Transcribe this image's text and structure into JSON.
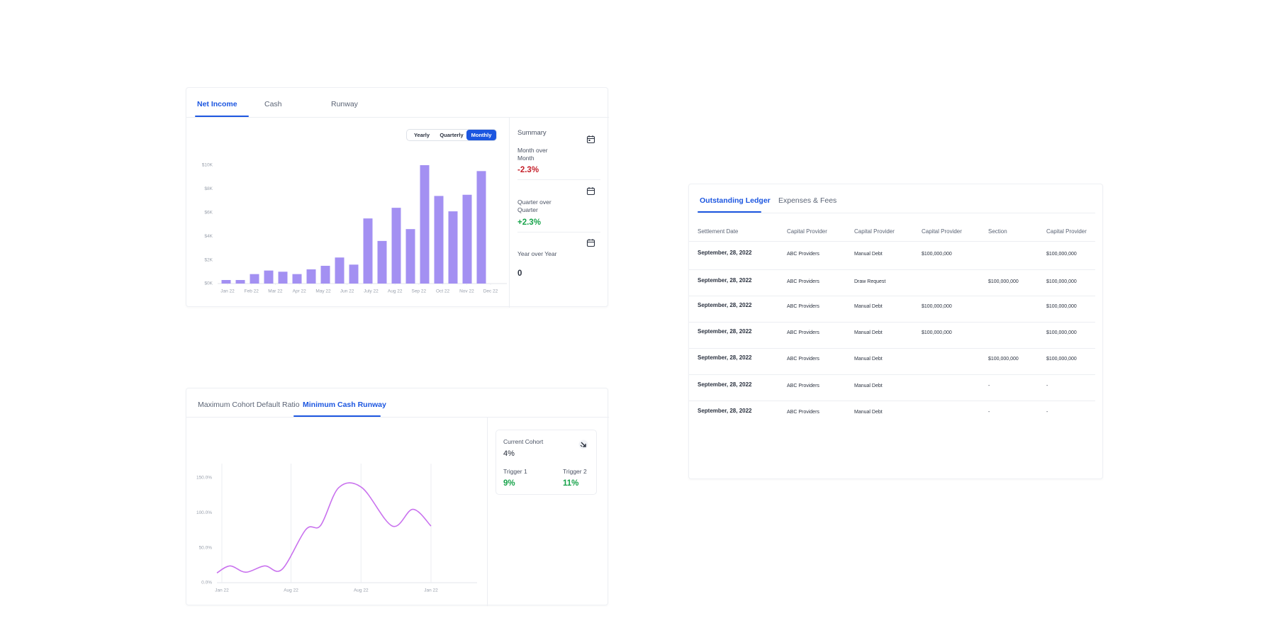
{
  "income_card": {
    "tabs": [
      "Net Income",
      "Cash",
      "Runway"
    ],
    "periods": [
      "Yearly",
      "Quarterly",
      "Monthly"
    ],
    "summary": {
      "title": "Summary",
      "items": [
        {
          "label": "Month over Month",
          "value": "-2.3%"
        },
        {
          "label": "Quarter over Quarter",
          "value": "+2.3%"
        },
        {
          "label": "Year over Year",
          "value": "0"
        }
      ]
    }
  },
  "runway_card": {
    "tabs": [
      "Maximum Cohort Default Ratio",
      "Minimum Cash Runway"
    ],
    "cohort": {
      "label": "Current Cohort",
      "value": "4%",
      "triggers": [
        {
          "label": "Trigger 1",
          "value": "9%"
        },
        {
          "label": "Trigger 2",
          "value": "11%"
        }
      ]
    }
  },
  "ledger": {
    "tabs": [
      "Outstanding Ledger",
      "Expenses & Fees"
    ],
    "columns": [
      "Settlement Date",
      "Capital Provider",
      "Capital Provider",
      "Capital Provider",
      "Section",
      "Capital Provider"
    ],
    "rows": [
      [
        "September, 28, 2022",
        "ABC Providers",
        "Manual Debt",
        "$100,000,000",
        null,
        "$100,000,000"
      ],
      [
        "September, 28, 2022",
        "ABC Providers",
        "Draw Request",
        null,
        "$100,000,000",
        "$100,000,000"
      ],
      [
        "September, 28, 2022",
        "ABC Providers",
        "Manual Debt",
        "$100,000,000",
        null,
        "$100,000,000"
      ],
      [
        "September, 28, 2022",
        "ABC Providers",
        "Manual Debt",
        "$100,000,000",
        null,
        "$100,000,000"
      ],
      [
        "September, 28, 2022",
        "ABC Providers",
        "Manual Debt",
        null,
        "$100,000,000",
        "$100,000,000"
      ],
      [
        "September, 28, 2022",
        "ABC Providers",
        "Manual Debt",
        null,
        "-",
        "-"
      ],
      [
        "September, 28, 2022",
        "ABC Providers",
        "Manual Debt",
        null,
        "-",
        "-"
      ]
    ]
  },
  "chart_data": [
    {
      "type": "bar",
      "color": "#a390f2",
      "x": [
        0,
        1,
        2,
        3,
        4,
        5,
        6,
        7,
        8,
        9,
        10,
        11,
        12,
        13,
        14,
        15,
        16,
        17,
        18
      ],
      "values": [
        300,
        300,
        800,
        1100,
        1000,
        800,
        1200,
        1500,
        2200,
        1600,
        5500,
        3600,
        6400,
        4600,
        10000,
        7400,
        6100,
        7500,
        9500
      ],
      "xlim": [
        -0.6,
        19.2
      ],
      "xticks": [
        {
          "value": 0.1,
          "label": "Jan 22"
        },
        {
          "value": 1.79,
          "label": "Feb 22"
        },
        {
          "value": 3.47,
          "label": "Mar 22"
        },
        {
          "value": 5.16,
          "label": "Apr 22"
        },
        {
          "value": 6.85,
          "label": "May 22"
        },
        {
          "value": 8.53,
          "label": "Jun 22"
        },
        {
          "value": 10.22,
          "label": "July 22"
        },
        {
          "value": 11.91,
          "label": "Aug 22"
        },
        {
          "value": 13.59,
          "label": "Sep 22"
        },
        {
          "value": 15.28,
          "label": "Oct 22"
        },
        {
          "value": 16.97,
          "label": "Nov 22"
        },
        {
          "value": 18.65,
          "label": "Dec 22"
        }
      ],
      "ylim": [
        0,
        10000
      ],
      "yticks": [
        {
          "value": 0,
          "label": "$0K"
        },
        {
          "value": 2000,
          "label": "$2K"
        },
        {
          "value": 4000,
          "label": "$4K"
        },
        {
          "value": 6000,
          "label": "$6K"
        },
        {
          "value": 8000,
          "label": "$8K"
        },
        {
          "value": 10000,
          "label": "$10K"
        }
      ]
    },
    {
      "type": "line",
      "color": "#c972ee",
      "x": [
        0,
        1.6,
        3.5,
        5.8,
        7.9,
        10.8,
        12.6,
        14.8,
        17.6,
        21.3,
        23.8,
        26
      ],
      "values": [
        14,
        24,
        15,
        24,
        19,
        76,
        82,
        136,
        136,
        81,
        105,
        81
      ],
      "xlim": [
        0,
        26
      ],
      "xticks": [
        {
          "value": 0.6,
          "label": "Jan 22"
        },
        {
          "value": 9,
          "label": "Aug 22"
        },
        {
          "value": 17.5,
          "label": "Aug 22"
        },
        {
          "value": 26,
          "label": "Jan 22"
        }
      ],
      "ylim": [
        0,
        150
      ],
      "yticks": [
        {
          "value": 0,
          "label": "0.0%"
        },
        {
          "value": 50,
          "label": "50.0%"
        },
        {
          "value": 100,
          "label": "100.0%"
        },
        {
          "value": 150,
          "label": "150.0%"
        }
      ],
      "grid": true
    }
  ]
}
